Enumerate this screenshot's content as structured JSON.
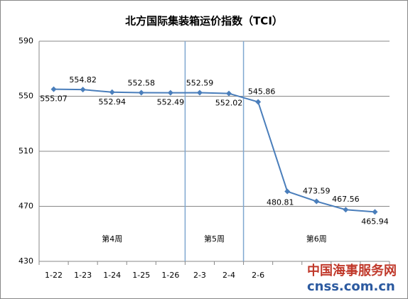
{
  "chart_data": {
    "type": "line",
    "title": "北方国际集装箱运价指数（TCI）",
    "categories": [
      "1-22",
      "1-23",
      "1-24",
      "1-25",
      "1-26",
      "2-3",
      "2-4",
      "2-6",
      null,
      null,
      null,
      null
    ],
    "series": [
      {
        "name": "TCI",
        "color": "#4a7ebb",
        "values": [
          555.07,
          554.82,
          552.94,
          552.58,
          552.49,
          552.59,
          552.02,
          545.86,
          480.81,
          473.59,
          467.56,
          465.94
        ]
      }
    ],
    "ylim": [
      430,
      590
    ],
    "yticks": [
      430,
      470,
      510,
      550,
      590
    ],
    "grid": true,
    "annotations": [
      "第4周",
      "第5周",
      "第6周"
    ],
    "watermark": [
      "中国海事服务网",
      "cnss.com.cn"
    ]
  }
}
